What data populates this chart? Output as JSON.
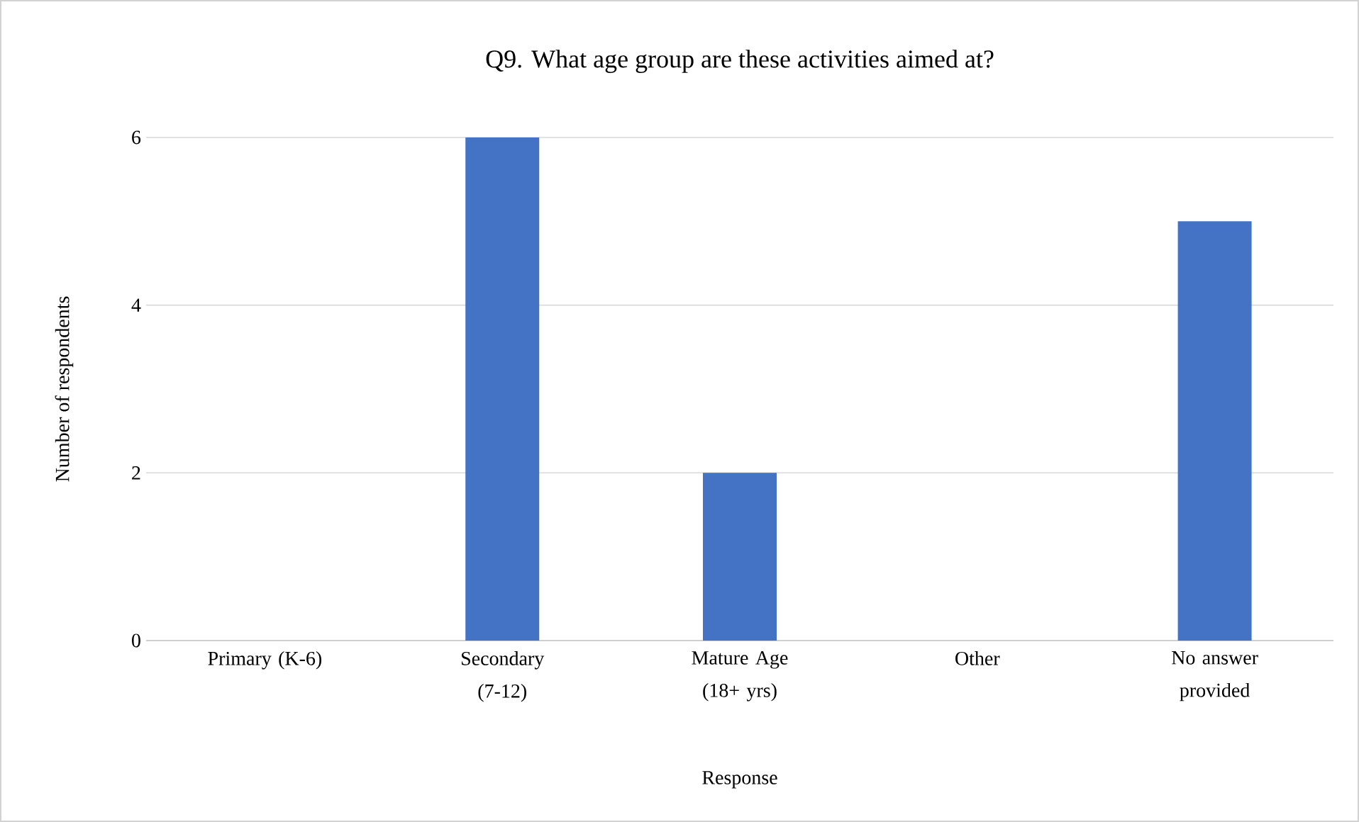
{
  "chart_data": {
    "type": "bar",
    "title": "Q9.  What age group are these activities aimed at?",
    "categories": [
      "Primary (K-6)",
      "Secondary (7-12)",
      "Mature Age (18+ yrs)",
      "Other",
      "No answer provided"
    ],
    "values": [
      0,
      6,
      2,
      0,
      5
    ],
    "color": "#4472c4",
    "xlabel": "Response",
    "ylabel": "Number of respondents",
    "ylim": [
      0,
      6
    ],
    "yticks": [
      0,
      2,
      4,
      6
    ],
    "grid": "y"
  }
}
